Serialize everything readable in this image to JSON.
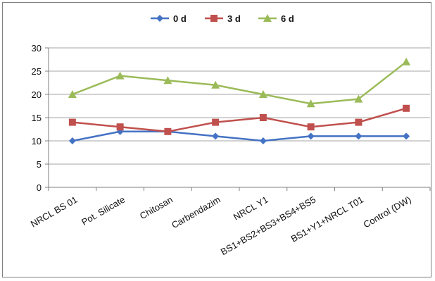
{
  "chart_data": {
    "type": "line",
    "categories": [
      "NRCL BS 01",
      "Pot. Silicate",
      "Chitosan",
      "Carbendazim",
      "NRCL Y1",
      "BS1+BS2+BS3+BS4+BS5",
      "BS1+Y1+NRCL T01",
      "Control (DW)"
    ],
    "series": [
      {
        "name": "0 d",
        "color": "#4472C4",
        "marker": "diamond",
        "values": [
          10,
          12,
          12,
          11,
          10,
          11,
          11,
          11
        ]
      },
      {
        "name": "3 d",
        "color": "#C0504D",
        "marker": "square",
        "values": [
          14,
          13,
          12,
          14,
          15,
          13,
          14,
          17
        ]
      },
      {
        "name": "6 d",
        "color": "#9BBB59",
        "marker": "triangle",
        "values": [
          20,
          24,
          23,
          22,
          20,
          18,
          19,
          27
        ]
      }
    ],
    "ylim": [
      0,
      30
    ],
    "yticks": [
      0,
      5,
      10,
      15,
      20,
      25,
      30
    ],
    "grid": true,
    "legend_position": "top-center",
    "title": "",
    "xlabel": "",
    "ylabel": ""
  }
}
